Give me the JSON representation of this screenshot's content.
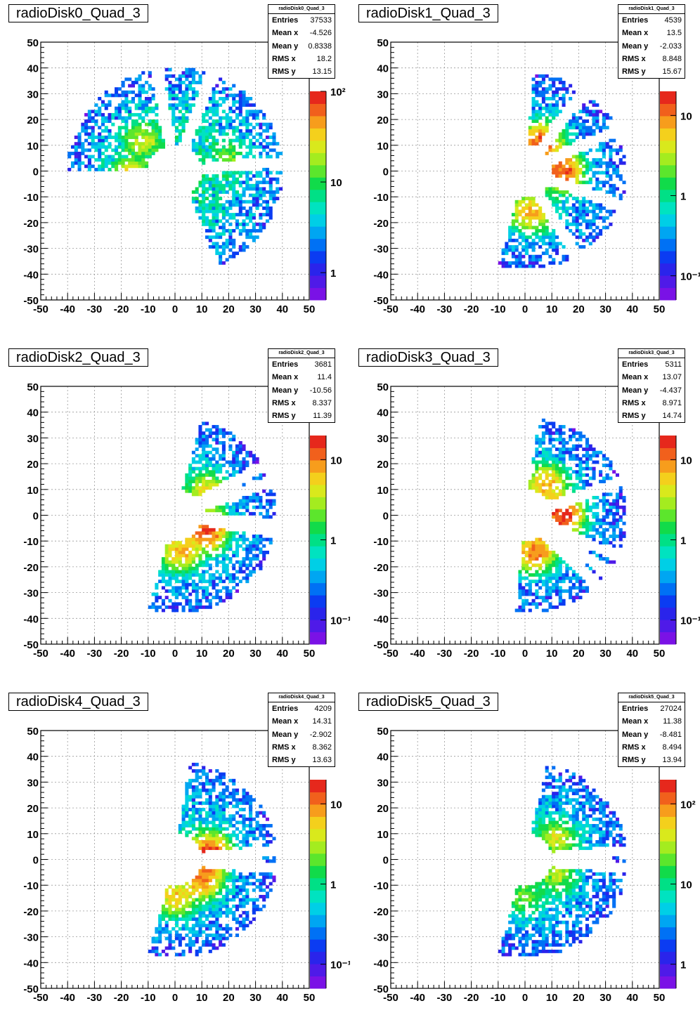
{
  "colors": {
    "palette": [
      "#7a12e6",
      "#4f1ae8",
      "#2a24eb",
      "#0b3cf2",
      "#0071f5",
      "#00a6f2",
      "#00cfe6",
      "#00e3c0",
      "#00e086",
      "#11db4a",
      "#5ce62c",
      "#a4ec1f",
      "#d9e91c",
      "#f4d01c",
      "#f79d1c",
      "#f1601c",
      "#e6281c"
    ],
    "frame": "#000000",
    "grid": "#999999"
  },
  "footer_text": "",
  "panels": [
    {
      "title": "radioDisk0_Quad_3",
      "stats_header": "radioDisk0_Quad_3",
      "stats": [
        {
          "label": "Entries",
          "value": "37533"
        },
        {
          "label": "Mean x",
          "value": "-4.526"
        },
        {
          "label": "Mean y",
          "value": "0.8338"
        },
        {
          "label": "RMS x",
          "value": "18.2"
        },
        {
          "label": "RMS y",
          "value": "13.15"
        }
      ]
    },
    {
      "title": "radioDisk1_Quad_3",
      "stats_header": "radioDisk1_Quad_3",
      "stats": [
        {
          "label": "Entries",
          "value": "4539"
        },
        {
          "label": "Mean x",
          "value": "13.5"
        },
        {
          "label": "Mean y",
          "value": "-2.033"
        },
        {
          "label": "RMS x",
          "value": "8.848"
        },
        {
          "label": "RMS y",
          "value": "15.67"
        }
      ]
    },
    {
      "title": "radioDisk2_Quad_3",
      "stats_header": "radioDisk2_Quad_3",
      "stats": [
        {
          "label": "Entries",
          "value": "3681"
        },
        {
          "label": "Mean x",
          "value": "11.4"
        },
        {
          "label": "Mean y",
          "value": "-10.56"
        },
        {
          "label": "RMS x",
          "value": "8.337"
        },
        {
          "label": "RMS y",
          "value": "11.39"
        }
      ]
    },
    {
      "title": "radioDisk3_Quad_3",
      "stats_header": "radioDisk3_Quad_3",
      "stats": [
        {
          "label": "Entries",
          "value": "5311"
        },
        {
          "label": "Mean x",
          "value": "13.07"
        },
        {
          "label": "Mean y",
          "value": "-4.437"
        },
        {
          "label": "RMS x",
          "value": "8.971"
        },
        {
          "label": "RMS y",
          "value": "14.74"
        }
      ]
    },
    {
      "title": "radioDisk4_Quad_3",
      "stats_header": "radioDisk4_Quad_3",
      "stats": [
        {
          "label": "Entries",
          "value": "4209"
        },
        {
          "label": "Mean x",
          "value": "14.31"
        },
        {
          "label": "Mean y",
          "value": "-2.902"
        },
        {
          "label": "RMS x",
          "value": "8.362"
        },
        {
          "label": "RMS y",
          "value": "13.63"
        }
      ]
    },
    {
      "title": "radioDisk5_Quad_3",
      "stats_header": "radioDisk5_Quad_3",
      "stats": [
        {
          "label": "Entries",
          "value": "27024"
        },
        {
          "label": "Mean x",
          "value": "11.38"
        },
        {
          "label": "Mean y",
          "value": "-8.481"
        },
        {
          "label": "RMS x",
          "value": "8.494"
        },
        {
          "label": "RMS y",
          "value": "13.94"
        }
      ]
    }
  ],
  "chart_data": [
    {
      "type": "heatmap",
      "title": "radioDisk0_Quad_3",
      "xlim": [
        -50,
        50
      ],
      "ylim": [
        -50,
        50
      ],
      "xticks": [
        "-50",
        "-40",
        "-30",
        "-20",
        "-10",
        "0",
        "10",
        "20",
        "30",
        "40",
        "50"
      ],
      "yticks": [
        "-50",
        "-40",
        "-30",
        "-20",
        "-10",
        "0",
        "10",
        "20",
        "30",
        "40",
        "50"
      ],
      "grid": true,
      "z_scale": "log",
      "z_range": [
        0.5,
        100
      ],
      "colorbar_ticks": [
        {
          "label": "1",
          "value": 1
        },
        {
          "label": "10",
          "value": 10
        },
        {
          "label": "10²",
          "value": 100
        }
      ],
      "stats_placement": "top-right",
      "shape": {
        "kind": "ring",
        "r_inner": 10,
        "r_outer": 40,
        "gaps_deg": [
          5,
          70,
          100,
          185,
          245,
          290
        ]
      },
      "hotspots": [
        {
          "x": -17,
          "y": -3,
          "z": 45
        },
        {
          "x": -12,
          "y": 12,
          "z": 20
        },
        {
          "x": -12,
          "y": -12,
          "z": 12
        },
        {
          "x": 20,
          "y": 5,
          "z": 10
        }
      ]
    },
    {
      "type": "heatmap",
      "title": "radioDisk1_Quad_3",
      "xlim": [
        -50,
        50
      ],
      "ylim": [
        -50,
        50
      ],
      "xticks": [
        "-50",
        "-40",
        "-30",
        "-20",
        "-10",
        "0",
        "10",
        "20",
        "30",
        "40",
        "50"
      ],
      "yticks": [
        "-50",
        "-40",
        "-30",
        "-20",
        "-10",
        "0",
        "10",
        "20",
        "30",
        "40",
        "50"
      ],
      "grid": true,
      "z_scale": "log",
      "z_range": [
        0.05,
        20
      ],
      "colorbar_ticks": [
        {
          "label": "10⁻¹",
          "value": 0.1
        },
        {
          "label": "1",
          "value": 1
        },
        {
          "label": "10",
          "value": 10
        }
      ],
      "stats_placement": "top-right",
      "shape": {
        "kind": "sector",
        "r_inner": 10,
        "r_outer": 38,
        "ang_from": -105,
        "ang_to": 85,
        "gaps_deg": [
          -60,
          -20,
          25,
          55
        ]
      },
      "hotspots": [
        {
          "x": 6,
          "y": 11,
          "z": 15
        },
        {
          "x": 14,
          "y": 0,
          "z": 15
        },
        {
          "x": 2,
          "y": -16,
          "z": 8
        }
      ]
    },
    {
      "type": "heatmap",
      "title": "radioDisk2_Quad_3",
      "xlim": [
        -50,
        50
      ],
      "ylim": [
        -50,
        50
      ],
      "xticks": [
        "-50",
        "-40",
        "-30",
        "-20",
        "-10",
        "0",
        "10",
        "20",
        "30",
        "40",
        "50"
      ],
      "yticks": [
        "-50",
        "-40",
        "-30",
        "-20",
        "-10",
        "0",
        "10",
        "20",
        "30",
        "40",
        "50"
      ],
      "grid": true,
      "z_scale": "log",
      "z_range": [
        0.05,
        20
      ],
      "colorbar_ticks": [
        {
          "label": "10⁻¹",
          "value": 0.1
        },
        {
          "label": "1",
          "value": 1
        },
        {
          "label": "10",
          "value": 10
        }
      ],
      "stats_placement": "top-right",
      "shape": {
        "kind": "sector",
        "r_inner": 10,
        "r_outer": 38,
        "ang_from": -105,
        "ang_to": 75,
        "gaps_deg": [
          -10,
          -5,
          20,
          30
        ]
      },
      "hotspots": [
        {
          "x": 12,
          "y": -6,
          "z": 15
        },
        {
          "x": 2,
          "y": -14,
          "z": 8
        },
        {
          "x": 12,
          "y": 9,
          "z": 6
        }
      ]
    },
    {
      "type": "heatmap",
      "title": "radioDisk3_Quad_3",
      "xlim": [
        -50,
        50
      ],
      "ylim": [
        -50,
        50
      ],
      "xticks": [
        "-50",
        "-40",
        "-30",
        "-20",
        "-10",
        "0",
        "10",
        "20",
        "30",
        "40",
        "50"
      ],
      "yticks": [
        "-50",
        "-40",
        "-30",
        "-20",
        "-10",
        "0",
        "10",
        "20",
        "30",
        "40",
        "50"
      ],
      "grid": true,
      "z_scale": "log",
      "z_range": [
        0.05,
        20
      ],
      "colorbar_ticks": [
        {
          "label": "10⁻¹",
          "value": 0.1
        },
        {
          "label": "1",
          "value": 1
        },
        {
          "label": "10",
          "value": 10
        }
      ],
      "stats_placement": "top-right",
      "shape": {
        "kind": "sector",
        "r_inner": 10,
        "r_outer": 38,
        "ang_from": -95,
        "ang_to": 82,
        "gaps_deg": [
          -45,
          -35,
          -25,
          20
        ]
      },
      "hotspots": [
        {
          "x": 14,
          "y": 0,
          "z": 18
        },
        {
          "x": 4,
          "y": -14,
          "z": 12
        },
        {
          "x": 8,
          "y": 12,
          "z": 8
        }
      ]
    },
    {
      "type": "heatmap",
      "title": "radioDisk4_Quad_3",
      "xlim": [
        -50,
        50
      ],
      "ylim": [
        -50,
        50
      ],
      "xticks": [
        "-50",
        "-40",
        "-30",
        "-20",
        "-10",
        "0",
        "10",
        "20",
        "30",
        "40",
        "50"
      ],
      "yticks": [
        "-50",
        "-40",
        "-30",
        "-20",
        "-10",
        "0",
        "10",
        "20",
        "30",
        "40",
        "50"
      ],
      "grid": true,
      "z_scale": "log",
      "z_range": [
        0.05,
        20
      ],
      "colorbar_ticks": [
        {
          "label": "10⁻¹",
          "value": 0.1
        },
        {
          "label": "1",
          "value": 1
        },
        {
          "label": "10",
          "value": 10
        }
      ],
      "stats_placement": "top-right",
      "shape": {
        "kind": "sector",
        "r_inner": 10,
        "r_outer": 38,
        "ang_from": -105,
        "ang_to": 82,
        "gaps_deg": [
          -5,
          5
        ]
      },
      "hotspots": [
        {
          "x": 13,
          "y": 2,
          "z": 18
        },
        {
          "x": 10,
          "y": -8,
          "z": 10
        },
        {
          "x": 0,
          "y": -15,
          "z": 6
        }
      ]
    },
    {
      "type": "heatmap",
      "title": "radioDisk5_Quad_3",
      "xlim": [
        -50,
        50
      ],
      "ylim": [
        -50,
        50
      ],
      "xticks": [
        "-50",
        "-40",
        "-30",
        "-20",
        "-10",
        "0",
        "10",
        "20",
        "30",
        "40",
        "50"
      ],
      "yticks": [
        "-50",
        "-40",
        "-30",
        "-20",
        "-10",
        "0",
        "10",
        "20",
        "30",
        "40",
        "50"
      ],
      "grid": true,
      "z_scale": "log",
      "z_range": [
        0.5,
        200
      ],
      "colorbar_ticks": [
        {
          "label": "1",
          "value": 1
        },
        {
          "label": "10",
          "value": 10
        },
        {
          "label": "10²",
          "value": 100
        }
      ],
      "stats_placement": "top-right",
      "shape": {
        "kind": "sector",
        "r_inner": 10,
        "r_outer": 38,
        "ang_from": -105,
        "ang_to": 78,
        "gaps_deg": [
          -5,
          5
        ]
      },
      "hotspots": [
        {
          "x": 12,
          "y": 8,
          "z": 40
        },
        {
          "x": 12,
          "y": -6,
          "z": 30
        },
        {
          "x": 0,
          "y": -15,
          "z": 20
        }
      ]
    }
  ]
}
